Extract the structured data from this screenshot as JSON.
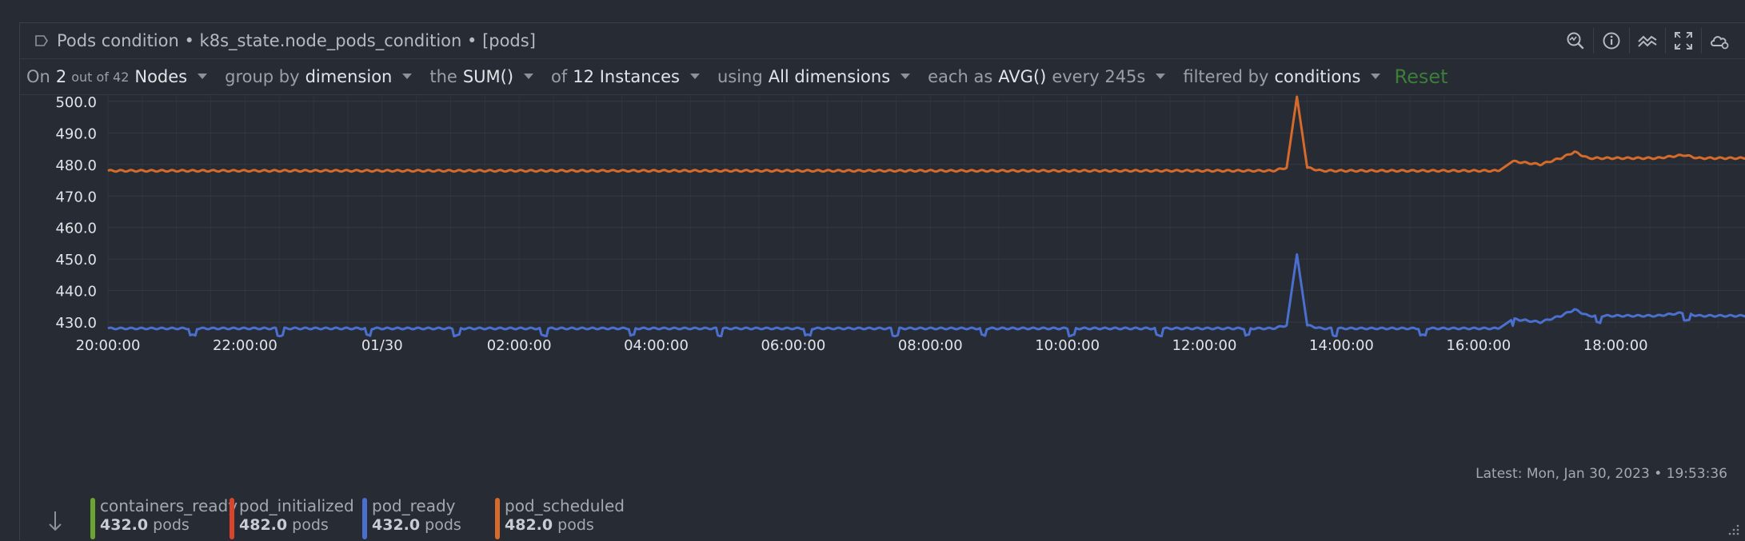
{
  "header": {
    "title": "Pods condition • k8s_state.node_pods_condition • [pods]"
  },
  "filters": {
    "on_label": "On",
    "on_value": "2",
    "on_total": "out of 42",
    "on_unit": "Nodes",
    "group_label": "group by",
    "group_value": "dimension",
    "agg_label": "the",
    "agg_value": "SUM()",
    "instances_label": "of",
    "instances_value": "12 Instances",
    "using_label": "using",
    "using_value": "All dimensions",
    "each_label": "each as",
    "each_value": "AVG()",
    "every_label": "every 245s",
    "filtered_label": "filtered by",
    "filtered_value": "conditions",
    "reset_label": "Reset"
  },
  "latest": "Latest:  Mon, Jan 30, 2023 • 19:53:36",
  "legend": [
    {
      "name": "containers_ready",
      "value": "432.0",
      "unit": "pods",
      "color": "#6aa531"
    },
    {
      "name": "pod_initialized",
      "value": "482.0",
      "unit": "pods",
      "color": "#d9452b"
    },
    {
      "name": "pod_ready",
      "value": "432.0",
      "unit": "pods",
      "color": "#4a6fcf"
    },
    {
      "name": "pod_scheduled",
      "value": "482.0",
      "unit": "pods",
      "color": "#d66a2b"
    }
  ],
  "chart_data": {
    "type": "line",
    "x_ticks": [
      "20:00:00",
      "22:00:00",
      "01/30",
      "02:00:00",
      "04:00:00",
      "06:00:00",
      "08:00:00",
      "10:00:00",
      "12:00:00",
      "14:00:00",
      "16:00:00",
      "18:00:00"
    ],
    "y_ticks": [
      "430.0",
      "440.0",
      "450.0",
      "460.0",
      "470.0",
      "480.0",
      "490.0",
      "500.0"
    ],
    "ylim": [
      428,
      502
    ],
    "x_hours_span": [
      0,
      23.9
    ],
    "grid": true,
    "series": [
      {
        "name": "pod_scheduled",
        "color": "#d66a2b",
        "x": [
          0,
          1,
          2,
          3,
          4,
          5,
          6,
          7,
          8,
          9,
          10,
          11,
          12,
          13,
          14,
          15,
          16,
          17,
          17.2,
          17.35,
          17.5,
          17.7,
          18,
          19,
          20,
          20.3,
          20.5,
          20.9,
          21.2,
          21.4,
          21.6,
          22,
          22.3,
          22.6,
          23,
          23.2,
          23.5,
          23.7,
          23.9
        ],
        "y": [
          478,
          478,
          478,
          478,
          478,
          478,
          478,
          478,
          478,
          478,
          478,
          478,
          478,
          478,
          478,
          478,
          478,
          478,
          479,
          501.5,
          479,
          478,
          478,
          478,
          478,
          478,
          481,
          480,
          482,
          484,
          482,
          482,
          482,
          482,
          483,
          482,
          482,
          482,
          482
        ]
      },
      {
        "name": "pod_ready",
        "color": "#4a6fcf",
        "x": [
          0,
          1,
          2,
          3,
          4,
          5,
          6,
          7,
          8,
          9,
          10,
          11,
          12,
          13,
          14,
          15,
          16,
          17,
          17.2,
          17.35,
          17.5,
          17.7,
          18,
          19,
          20,
          20.3,
          20.5,
          20.9,
          21.2,
          21.4,
          21.6,
          22,
          22.3,
          22.6,
          23,
          23.2,
          23.5,
          23.7,
          23.9
        ],
        "y": [
          428,
          428,
          428,
          428,
          428,
          428,
          428,
          428,
          428,
          428,
          428,
          428,
          428,
          428,
          428,
          428,
          428,
          428,
          429,
          451.5,
          429,
          428,
          428,
          428,
          428,
          428,
          431,
          430,
          432,
          434,
          432,
          432,
          432,
          432,
          433,
          432,
          432,
          432,
          432
        ]
      }
    ]
  }
}
